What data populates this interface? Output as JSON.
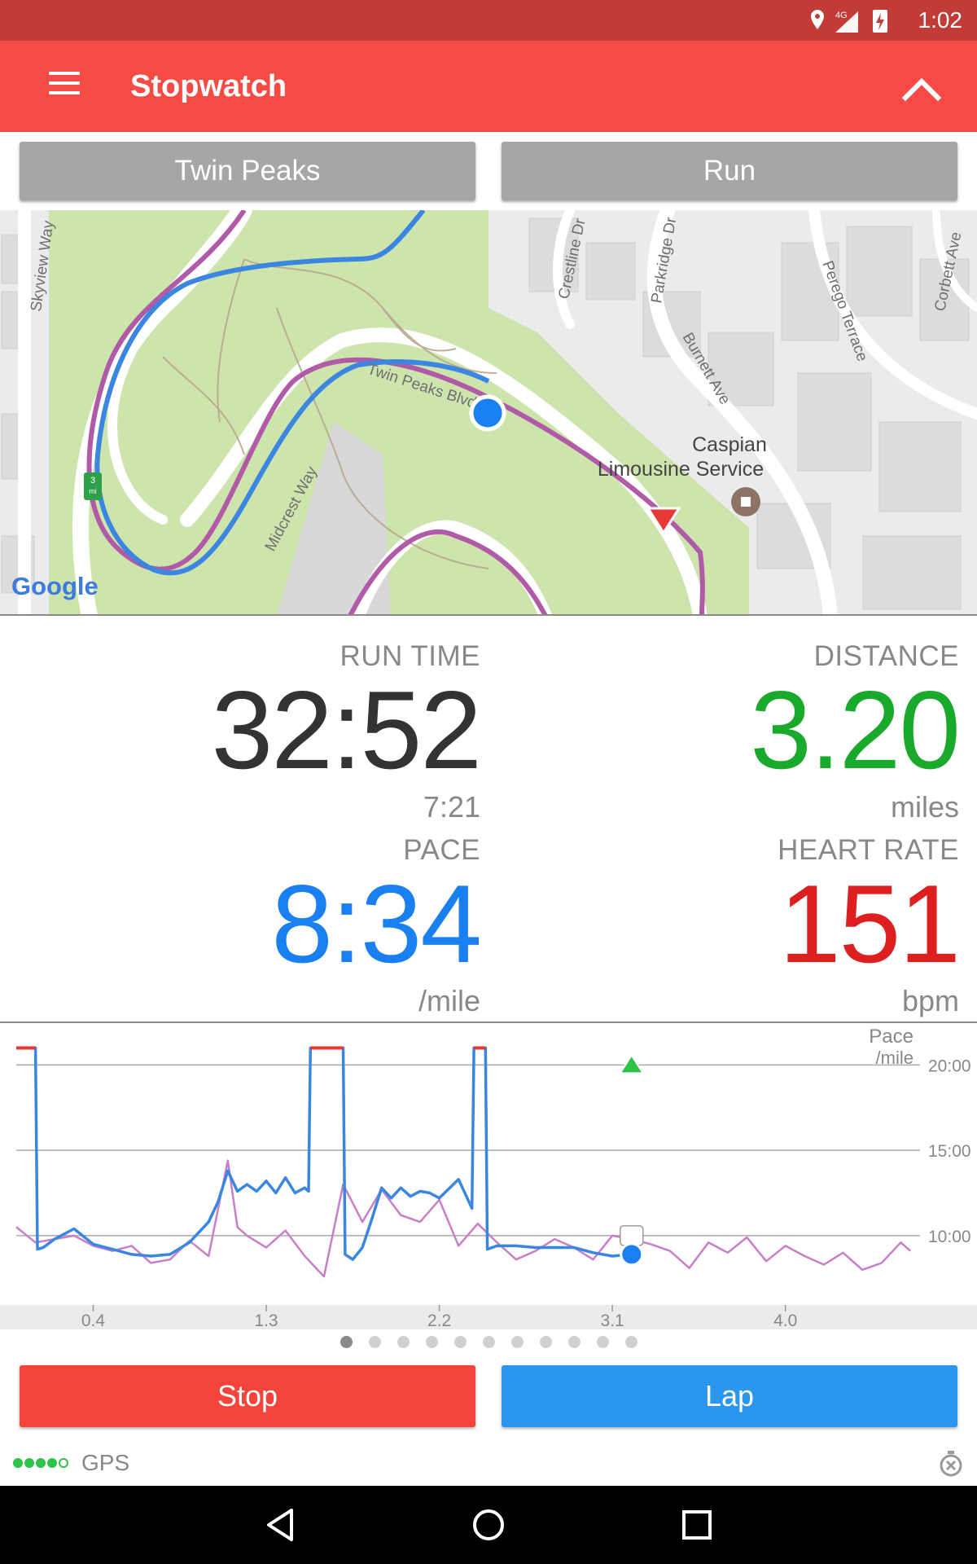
{
  "status_bar": {
    "time": "1:02",
    "network": "4G",
    "icons": [
      "location-icon",
      "signal-icon",
      "battery-charging-icon"
    ]
  },
  "app_bar": {
    "title": "Stopwatch",
    "menu_icon": "hamburger-menu-icon",
    "collapse_icon": "chevron-up-icon"
  },
  "selectors": {
    "route": "Twin Peaks",
    "activity": "Run"
  },
  "map": {
    "labels": {
      "skyview": "Skyview Way",
      "crestline": "Crestline Dr",
      "parkridge": "Parkridge Dr",
      "burnett": "Burnett Ave",
      "perego": "Perego Terrace",
      "corbett": "Corbett Ave",
      "twin_peaks_blvd": "Twin Peaks Blvd",
      "midcrest": "Midcrest Way",
      "poi_line1": "Caspian",
      "poi_line2": "Limousine Service",
      "mile_marker": "3",
      "mile_unit": "mi",
      "attribution": "Google"
    },
    "colors": {
      "route_planned": "#b05aa8",
      "track": "#3a86e0",
      "position": "#1a7ff0",
      "start_marker": "#e53935"
    }
  },
  "metrics": {
    "run_time": {
      "label": "RUN TIME",
      "value": "32:52",
      "sub": "7:21",
      "color": "#333333"
    },
    "distance": {
      "label": "DISTANCE",
      "value": "3.20",
      "sub": "miles",
      "color": "#19a92b"
    },
    "pace": {
      "label": "PACE",
      "value": "8:34",
      "sub": "/mile",
      "color": "#1a7ff0"
    },
    "heart_rate": {
      "label": "HEART RATE",
      "value": "151",
      "sub": "bpm",
      "color": "#dd1f1f"
    }
  },
  "chart_data": {
    "type": "line",
    "title": "",
    "ylabel": "Pace",
    "yunit": "/mile",
    "yticks": [
      "20:00",
      "15:00",
      "10:00"
    ],
    "ytick_values": [
      20,
      15,
      10
    ],
    "xticks": [
      "0.4",
      "1.3",
      "2.2",
      "3.1",
      "4.0"
    ],
    "xtick_values": [
      0.4,
      1.3,
      2.2,
      3.1,
      4.0
    ],
    "ylim": [
      6.7,
      21.5
    ],
    "xlim": [
      0.0,
      4.7
    ],
    "current_x": 3.2,
    "series": [
      {
        "color": "#3a86e0",
        "x": [
          0.0,
          0.1,
          0.11,
          0.14,
          0.2,
          0.3,
          0.4,
          0.5,
          0.6,
          0.7,
          0.8,
          0.9,
          1.0,
          1.05,
          1.1,
          1.15,
          1.2,
          1.25,
          1.3,
          1.35,
          1.4,
          1.45,
          1.5,
          1.52,
          1.53,
          1.6,
          1.65,
          1.7,
          1.71,
          1.75,
          1.8,
          1.85,
          1.9,
          1.95,
          2.0,
          2.05,
          2.1,
          2.15,
          2.2,
          2.3,
          2.37,
          2.38,
          2.44,
          2.45,
          2.5,
          2.6,
          2.7,
          2.8,
          2.9,
          3.0,
          3.1,
          3.2
        ],
        "y": [
          21,
          21,
          9.2,
          9.3,
          9.8,
          10.4,
          9.5,
          9.2,
          8.9,
          8.8,
          8.9,
          9.6,
          10.8,
          12.0,
          13.8,
          12.6,
          13.0,
          12.6,
          13.2,
          12.5,
          13.4,
          12.5,
          12.8,
          12.6,
          21,
          21,
          21,
          21,
          8.9,
          8.6,
          9.3,
          11.0,
          12.8,
          12.2,
          12.8,
          12.3,
          12.6,
          12.5,
          12.2,
          13.3,
          11.6,
          21,
          21,
          9.2,
          9.4,
          9.4,
          9.3,
          9.3,
          9.3,
          9.0,
          8.8,
          8.9
        ]
      },
      {
        "color": "#c97fc7",
        "x": [
          0.0,
          0.1,
          0.2,
          0.3,
          0.4,
          0.5,
          0.6,
          0.7,
          0.8,
          0.9,
          1.0,
          1.1,
          1.15,
          1.2,
          1.3,
          1.4,
          1.5,
          1.6,
          1.7,
          1.8,
          1.9,
          2.0,
          2.1,
          2.2,
          2.3,
          2.4,
          2.5,
          2.6,
          2.7,
          2.8,
          2.9,
          3.0,
          3.1,
          3.2,
          3.3,
          3.4,
          3.5,
          3.6,
          3.7,
          3.8,
          3.9,
          4.0,
          4.1,
          4.2,
          4.3,
          4.4,
          4.5,
          4.6,
          4.65
        ],
        "y": [
          10.5,
          9.6,
          9.8,
          10.0,
          9.4,
          9.1,
          9.4,
          8.4,
          8.6,
          9.7,
          8.8,
          14.4,
          10.5,
          10.0,
          9.3,
          10.3,
          8.8,
          7.6,
          13.0,
          10.8,
          12.7,
          11.2,
          10.8,
          12.1,
          9.4,
          10.7,
          9.6,
          8.6,
          9.1,
          9.8,
          9.3,
          8.6,
          10.0,
          9.8,
          9.5,
          9.1,
          8.1,
          9.6,
          9.0,
          9.9,
          8.5,
          9.4,
          8.8,
          8.3,
          9.0,
          8.0,
          8.4,
          9.6,
          9.1
        ]
      }
    ],
    "missing_segments_color": "#e53935",
    "grid": true
  },
  "pager": {
    "count": 11,
    "active_index": 0
  },
  "actions": {
    "stop": "Stop",
    "lap": "Lap"
  },
  "gps": {
    "label": "GPS",
    "strength": 4,
    "max": 5
  },
  "nav_bar": {
    "icons": [
      "back-triangle-icon",
      "home-circle-icon",
      "recents-square-icon"
    ]
  }
}
